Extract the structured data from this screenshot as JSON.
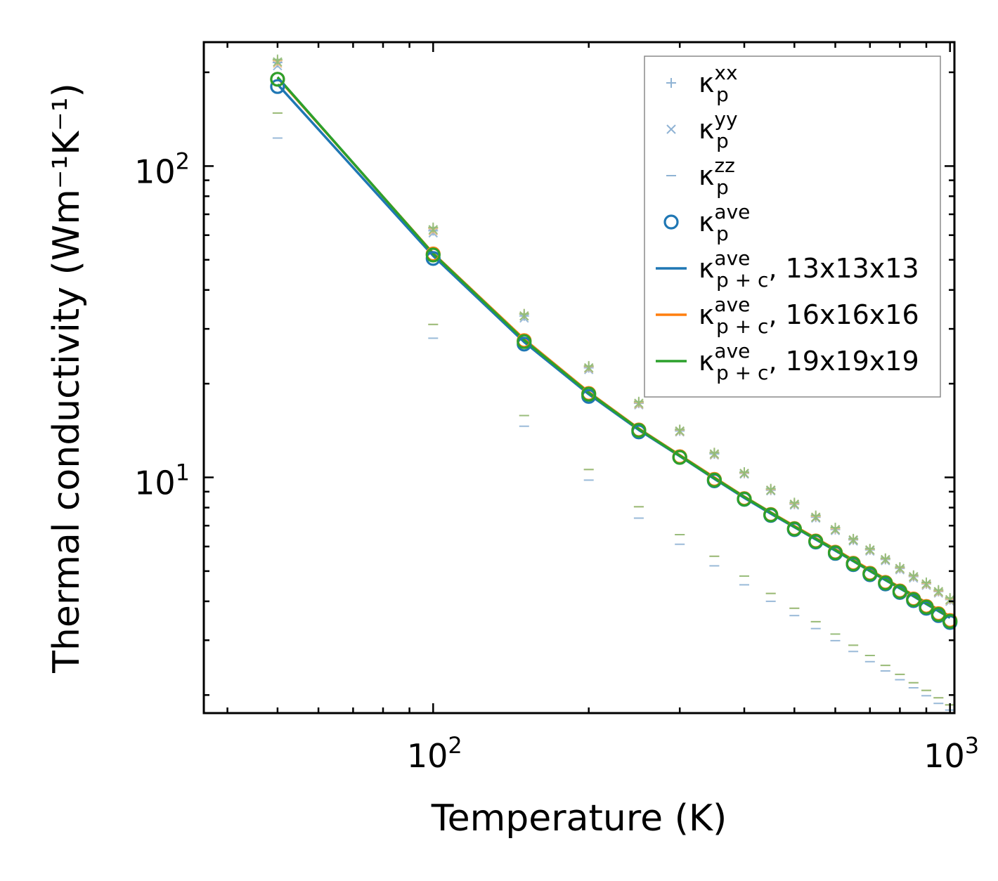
{
  "chart_data": {
    "type": "line",
    "title": "",
    "xlabel": "Temperature (K)",
    "ylabel": "Thermal conductivity (Wm⁻¹K⁻¹)",
    "xscale": "log",
    "yscale": "log",
    "xlim": [
      36,
      1020
    ],
    "ylim": [
      1.75,
      250
    ],
    "x_major_ticks": [
      {
        "value": 100,
        "base": "10",
        "exp": "2"
      },
      {
        "value": 1000,
        "base": "10",
        "exp": "3"
      }
    ],
    "y_major_ticks": [
      {
        "value": 10,
        "base": "10",
        "exp": "1"
      },
      {
        "value": 100,
        "base": "10",
        "exp": "2"
      }
    ],
    "legend_position": "top-right",
    "legend": [
      {
        "marker": "plus",
        "color": "#8fb3d4",
        "symbol": "κ",
        "sub": "p",
        "sup": "xx",
        "suffix": ""
      },
      {
        "marker": "cross",
        "color": "#8fb3d4",
        "symbol": "κ",
        "sub": "p",
        "sup": "yy",
        "suffix": ""
      },
      {
        "marker": "hline",
        "color": "#8fb3d4",
        "symbol": "κ",
        "sub": "p",
        "sup": "zz",
        "suffix": ""
      },
      {
        "marker": "circle",
        "color": "#1f77b4",
        "symbol": "κ",
        "sub": "p",
        "sup": "ave",
        "suffix": ""
      },
      {
        "marker": "line",
        "color": "#1f77b4",
        "symbol": "κ",
        "sub": "p + c",
        "sup": "ave",
        "suffix": ", 13x13x13"
      },
      {
        "marker": "line",
        "color": "#ff7f0e",
        "symbol": "κ",
        "sub": "p + c",
        "sup": "ave",
        "suffix": ", 16x16x16"
      },
      {
        "marker": "line",
        "color": "#2ca02c",
        "symbol": "κ",
        "sub": "p + c",
        "sup": "ave",
        "suffix": ", 19x19x19"
      }
    ],
    "x": [
      50,
      100,
      150,
      200,
      250,
      300,
      350,
      400,
      450,
      500,
      550,
      600,
      650,
      700,
      750,
      800,
      850,
      900,
      950,
      1000
    ],
    "series": [
      {
        "name": "13x13x13",
        "color": "#1f77b4",
        "kappa_xx": [
          215,
          62,
          33,
          22.5,
          17.3,
          14.1,
          11.9,
          10.3,
          9.1,
          8.2,
          7.45,
          6.8,
          6.3,
          5.85,
          5.45,
          5.1,
          4.8,
          4.55,
          4.3,
          4.05
        ],
        "kappa_yy": [
          210,
          61,
          32.5,
          22.2,
          17.1,
          14.0,
          11.8,
          10.25,
          9.05,
          8.15,
          7.4,
          6.75,
          6.25,
          5.8,
          5.4,
          5.05,
          4.75,
          4.5,
          4.25,
          4.0
        ],
        "kappa_zz": [
          123,
          28,
          14.6,
          9.8,
          7.4,
          6.1,
          5.2,
          4.52,
          4.0,
          3.6,
          3.27,
          2.99,
          2.76,
          2.56,
          2.39,
          2.24,
          2.11,
          1.99,
          1.88,
          1.79
        ],
        "kappa_ave": [
          180,
          50.5,
          26.8,
          18.2,
          14.0,
          11.6,
          9.75,
          8.5,
          7.55,
          6.8,
          6.2,
          5.7,
          5.25,
          4.87,
          4.55,
          4.27,
          4.02,
          3.8,
          3.6,
          3.42
        ],
        "kappa_total_ave": [
          183,
          51.5,
          27.2,
          18.5,
          14.2,
          11.7,
          9.9,
          8.6,
          7.65,
          6.92,
          6.32,
          5.82,
          5.38,
          5.0,
          4.68,
          4.4,
          4.15,
          3.92,
          3.72,
          3.54
        ]
      },
      {
        "name": "16x16x16",
        "color": "#ff7f0e",
        "kappa_xx": [
          218,
          63,
          33.5,
          22.7,
          17.4,
          14.2,
          12.0,
          10.35,
          9.15,
          8.25,
          7.5,
          6.85,
          6.33,
          5.88,
          5.48,
          5.13,
          4.83,
          4.57,
          4.32,
          4.07
        ],
        "kappa_yy": [
          214,
          62,
          33,
          22.4,
          17.2,
          14.05,
          11.85,
          10.3,
          9.1,
          8.2,
          7.45,
          6.8,
          6.3,
          5.84,
          5.44,
          5.09,
          4.79,
          4.53,
          4.28,
          4.03
        ],
        "kappa_zz": [
          148,
          31,
          15.8,
          10.6,
          8.05,
          6.55,
          5.58,
          4.82,
          4.24,
          3.8,
          3.44,
          3.14,
          2.89,
          2.68,
          2.49,
          2.33,
          2.19,
          2.07,
          1.96,
          1.86
        ],
        "kappa_ave": [
          190,
          52.2,
          27.5,
          18.6,
          14.2,
          11.65,
          9.85,
          8.55,
          7.6,
          6.85,
          6.25,
          5.75,
          5.3,
          4.92,
          4.6,
          4.32,
          4.07,
          3.85,
          3.65,
          3.47
        ],
        "kappa_total_ave": [
          192,
          52.5,
          27.8,
          18.8,
          14.35,
          11.8,
          10.0,
          8.68,
          7.72,
          6.98,
          6.38,
          5.88,
          5.43,
          5.05,
          4.72,
          4.44,
          4.19,
          3.96,
          3.76,
          3.58
        ]
      },
      {
        "name": "19x19x19",
        "color": "#2ca02c",
        "kappa_xx": [
          220,
          63.5,
          33.5,
          22.8,
          17.5,
          14.25,
          12.0,
          10.4,
          9.2,
          8.3,
          7.55,
          6.9,
          6.35,
          5.9,
          5.5,
          5.15,
          4.85,
          4.6,
          4.35,
          4.1
        ],
        "kappa_yy": [
          216,
          62.5,
          33,
          22.5,
          17.3,
          14.1,
          11.9,
          10.3,
          9.1,
          8.2,
          7.45,
          6.8,
          6.3,
          5.85,
          5.45,
          5.1,
          4.8,
          4.55,
          4.3,
          4.05
        ],
        "kappa_zz": [
          148,
          31,
          15.8,
          10.6,
          8.05,
          6.55,
          5.58,
          4.82,
          4.24,
          3.8,
          3.44,
          3.14,
          2.89,
          2.68,
          2.49,
          2.33,
          2.19,
          2.07,
          1.96,
          1.86
        ],
        "kappa_ave": [
          190,
          51.8,
          27.3,
          18.5,
          14.15,
          11.6,
          9.8,
          8.52,
          7.58,
          6.83,
          6.23,
          5.73,
          5.28,
          4.9,
          4.58,
          4.3,
          4.05,
          3.83,
          3.63,
          3.45
        ],
        "kappa_total_ave": [
          193,
          52.3,
          27.6,
          18.7,
          14.3,
          11.75,
          9.95,
          8.65,
          7.7,
          6.95,
          6.35,
          5.85,
          5.4,
          5.02,
          4.7,
          4.42,
          4.17,
          3.94,
          3.74,
          3.56
        ]
      }
    ]
  }
}
